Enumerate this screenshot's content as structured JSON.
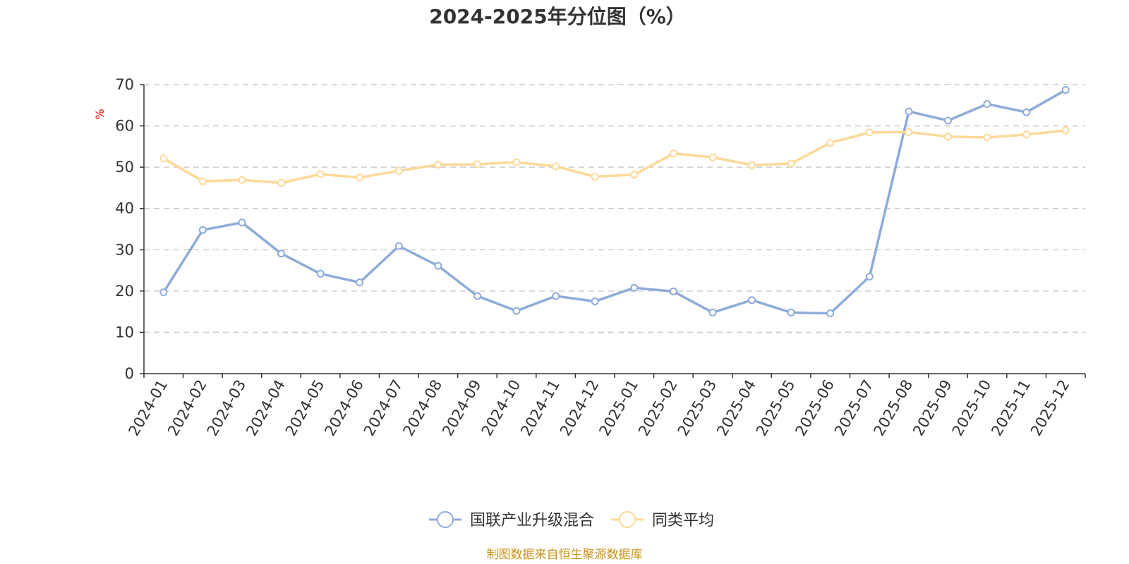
{
  "chart_data": {
    "type": "line",
    "title": "2024-2025年分位图（%）",
    "ylabel": "%",
    "xlabel": "",
    "ylim": [
      0,
      70
    ],
    "yticks": [
      0,
      10,
      20,
      30,
      40,
      50,
      60,
      70
    ],
    "grid": true,
    "legend_position": "bottom",
    "categories": [
      "2024-01",
      "2024-02",
      "2024-03",
      "2024-04",
      "2024-05",
      "2024-06",
      "2024-07",
      "2024-08",
      "2024-09",
      "2024-10",
      "2024-11",
      "2024-12",
      "2025-01",
      "2025-02",
      "2025-03",
      "2025-04",
      "2025-05",
      "2025-06",
      "2025-07",
      "2025-08",
      "2025-09",
      "2025-10",
      "2025-11",
      "2025-12"
    ],
    "series": [
      {
        "name": "国联产业升级混合",
        "color": "#8eabd9",
        "values": [
          19.7,
          34.8,
          36.6,
          29.1,
          24.2,
          22.1,
          30.9,
          26.1,
          18.8,
          15.2,
          18.8,
          17.5,
          20.8,
          19.9,
          14.8,
          17.8,
          14.8,
          14.6,
          23.5,
          63.5,
          61.3,
          65.3,
          63.3,
          68.7
        ]
      },
      {
        "name": "同类平均",
        "color": "#fcd998",
        "values": [
          52.1,
          46.6,
          46.9,
          46.2,
          48.3,
          47.5,
          49.1,
          50.6,
          50.7,
          51.2,
          50.2,
          47.7,
          48.2,
          53.3,
          52.4,
          50.5,
          50.9,
          55.9,
          58.4,
          58.5,
          57.4,
          57.2,
          57.9,
          58.9
        ]
      }
    ],
    "source": "制图数据来自恒生聚源数据库"
  }
}
